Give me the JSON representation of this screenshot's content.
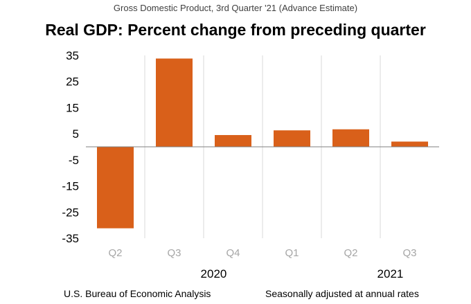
{
  "header": {
    "supertitle": "Gross Domestic Product, 3rd Quarter '21 (Advance Estimate)",
    "title": "Real GDP:  Percent change from preceding quarter"
  },
  "footer": {
    "source": "U.S. Bureau of Economic Analysis",
    "note": "Seasonally adjusted at annual rates"
  },
  "colors": {
    "bar": "#d9601a",
    "grid": "#d9d9d9",
    "axis": "#7f7f7f"
  },
  "chart_data": {
    "type": "bar",
    "title": "Real GDP:  Percent change from preceding quarter",
    "categories": [
      "Q2",
      "Q3",
      "Q4",
      "Q1",
      "Q2",
      "Q3"
    ],
    "years": [
      {
        "label": "2020",
        "categories": [
          0,
          1,
          2
        ]
      },
      {
        "label": "2021",
        "categories": [
          3,
          4,
          5
        ]
      }
    ],
    "values": [
      -31.2,
      33.8,
      4.5,
      6.3,
      6.7,
      2.0
    ],
    "yticks": [
      35,
      25,
      15,
      5,
      -5,
      -15,
      -25,
      -35
    ],
    "ylim": [
      -35,
      35
    ],
    "grid": "vertical separators between categories",
    "legend": "none"
  }
}
